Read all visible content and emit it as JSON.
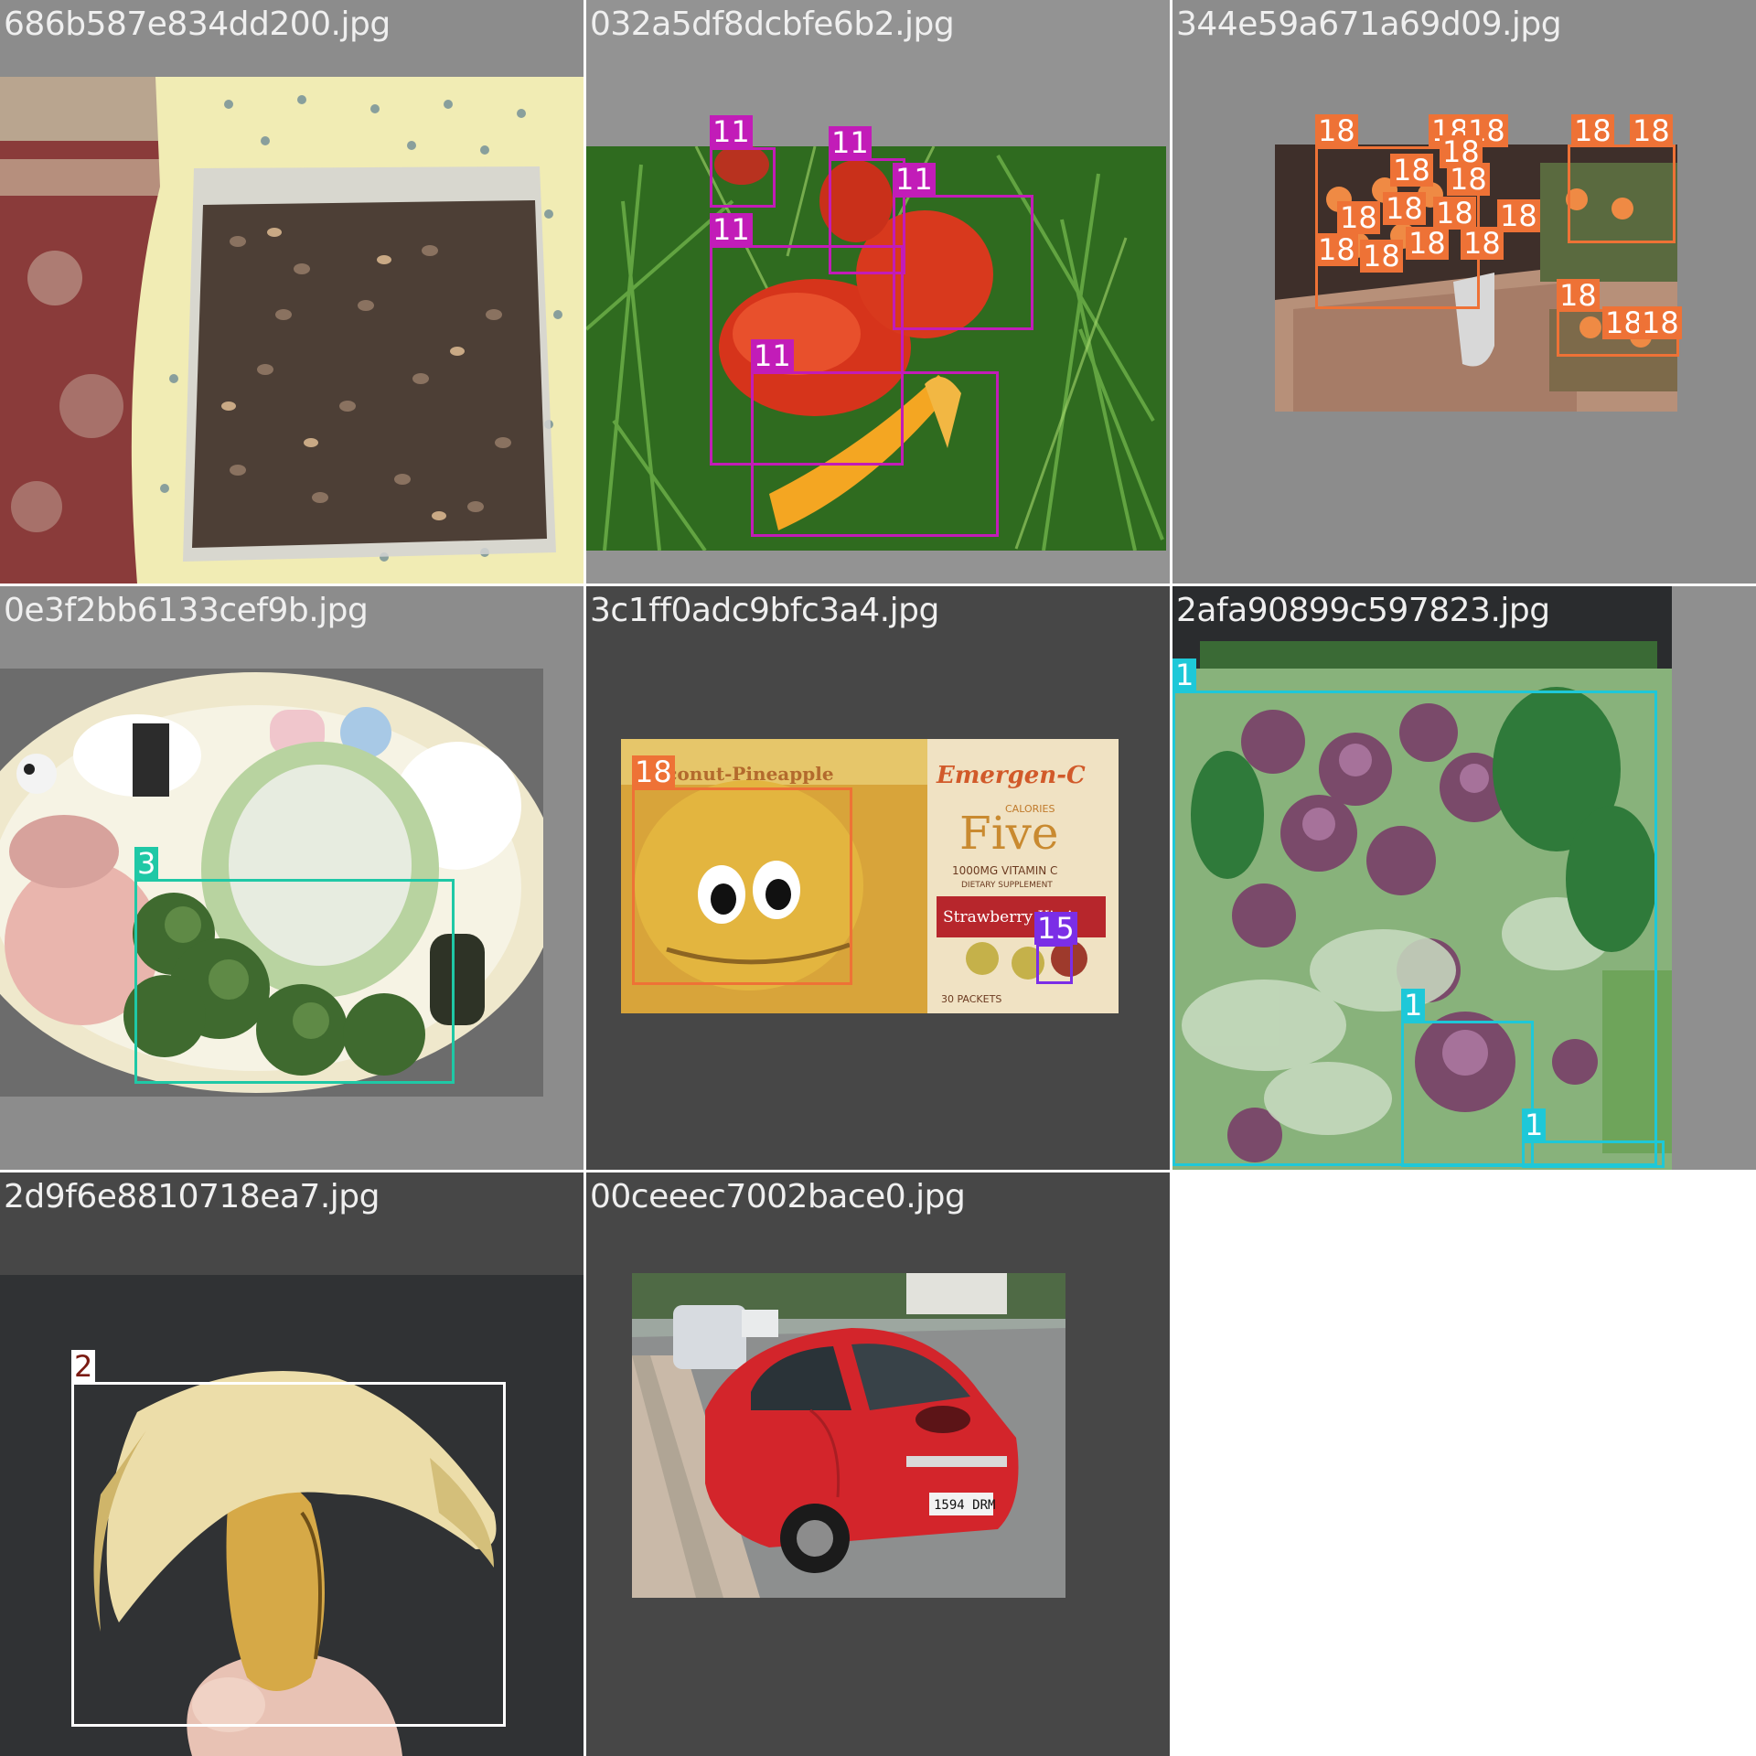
{
  "colors": {
    "class_11": "#c21cb8",
    "class_18": "#ee7236",
    "class_3": "#1fc8a6",
    "class_15": "#7b2ee6",
    "class_1": "#1ec8d8",
    "class_2_box": "#ffffff",
    "class_2_text": "#7a1a12"
  },
  "tiles": [
    {
      "filename": "686b587e834dd200.jpg",
      "labels": []
    },
    {
      "filename": "032a5df8dcbfe6b2.jpg",
      "labels": [
        "11",
        "11",
        "11",
        "11",
        "11"
      ]
    },
    {
      "filename": "344e59a671a69d09.jpg",
      "labels": [
        "18",
        "18",
        "18",
        "18",
        "18",
        "18",
        "18",
        "18",
        "18",
        "18",
        "18",
        "18",
        "18",
        "18",
        "18",
        "18",
        "18",
        "18",
        "18"
      ]
    },
    {
      "filename": "0e3f2bb6133cef9b.jpg",
      "labels": [
        "3"
      ]
    },
    {
      "filename": "3c1ff0adc9bfc3a4.jpg",
      "labels": [
        "18",
        "15"
      ]
    },
    {
      "filename": "2afa90899c597823.jpg",
      "labels": [
        "1",
        "1",
        "1"
      ]
    },
    {
      "filename": "2d9f6e8810718ea7.jpg",
      "labels": [
        "2"
      ]
    },
    {
      "filename": "00ceeec7002bace0.jpg",
      "labels": []
    }
  ],
  "printed_text": {
    "coconut_pineapple": "Coconut-Pineapple",
    "emergen_c": "Emergen-C",
    "five": "Five",
    "calories": "CALORIES",
    "vitamin_c": "1000MG VITAMIN C",
    "supplement": "DIETARY SUPPLEMENT",
    "strawberry": "Strawberry Kiwi",
    "packets": "30 PACKETS",
    "plate": "1594 DRM"
  }
}
